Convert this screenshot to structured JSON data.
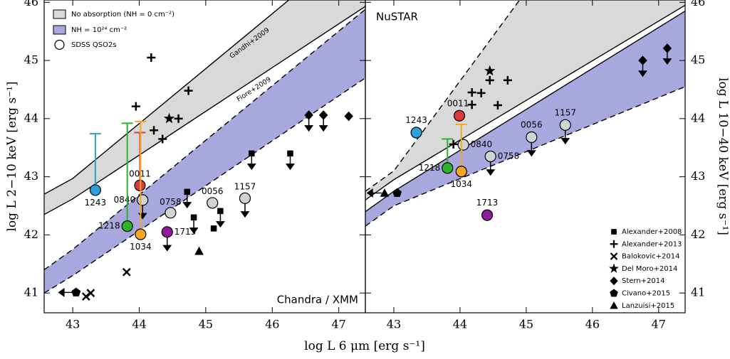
{
  "chart_data": [
    {
      "type": "scatter",
      "xlabel": "log L 6 μm [erg s⁻¹]",
      "ylabel": "log L 2−10 keV [erg s⁻¹]",
      "xlim": [
        42.57,
        47.4
      ],
      "ylim": [
        40.66,
        46.04
      ],
      "xticks": [
        43,
        44,
        45,
        46,
        47
      ],
      "yticks": [
        41,
        42,
        43,
        44,
        45,
        46
      ],
      "panel_label": "Chandra / XMM",
      "annotations": [
        "Gandhi+2009",
        "Fiore+2009"
      ],
      "bands": [
        {
          "name": "No absorption (NH = 0 cm⁻²)",
          "color": "#d9d9d9",
          "upper_dashed": false,
          "lower_dashed": false,
          "upper": {
            "x": [
              42.57,
              43.0,
              46.25
            ],
            "y": [
              42.7,
              42.97,
              46.04
            ]
          },
          "lower": {
            "x": [
              42.57,
              43.0,
              47.4
            ],
            "y": [
              42.35,
              42.62,
              45.93
            ]
          }
        },
        {
          "name": "NH = 10²⁴ cm⁻²",
          "color": "#a9a8de",
          "upper_dashed": true,
          "lower_dashed": true,
          "upper": {
            "x": [
              42.57,
              43.0,
              47.4
            ],
            "y": [
              41.4,
              41.75,
              45.88
            ]
          },
          "lower": {
            "x": [
              42.57,
              43.0,
              47.4
            ],
            "y": [
              41.0,
              41.3,
              44.7
            ]
          }
        }
      ],
      "series": [
        {
          "name": "SDSS QSO2s",
          "marker": "circle",
          "labels": [
            "1243",
            "0011",
            "0840",
            "1218",
            "1034",
            "1713",
            "0758",
            "0056",
            "1157"
          ],
          "colors": [
            "#2e9fd8",
            "#d93a3a",
            "#d3d3d3",
            "#2bb52b",
            "#f5a623",
            "#8e1b9e",
            "#d3d3d3",
            "#d3d3d3",
            "#d3d3d3"
          ],
          "x": [
            43.34,
            44.01,
            44.05,
            43.82,
            44.02,
            44.42,
            44.47,
            45.1,
            45.59
          ],
          "y": [
            42.77,
            42.85,
            42.6,
            42.15,
            42.01,
            42.05,
            42.38,
            42.55,
            42.63
          ],
          "upper_limit": [
            false,
            false,
            true,
            false,
            false,
            true,
            false,
            false,
            true
          ],
          "err_top": [
            43.74,
            43.76,
            null,
            43.92,
            43.95,
            null,
            null,
            null,
            null
          ]
        },
        {
          "name": "Alexander+2008",
          "marker": "square",
          "color": "#000000",
          "x": [
            44.72,
            44.82,
            45.12,
            45.22,
            45.69,
            46.27
          ],
          "y": [
            42.74,
            42.3,
            42.11,
            42.41,
            43.4,
            43.4
          ],
          "upper_limit": [
            true,
            true,
            false,
            true,
            true,
            true
          ]
        },
        {
          "name": "Alexander+2013",
          "marker": "plus",
          "color": "#000000",
          "x": [
            43.95,
            44.18,
            44.22,
            44.35,
            44.59,
            44.74
          ],
          "y": [
            44.21,
            45.05,
            43.8,
            43.65,
            44.0,
            44.48
          ]
        },
        {
          "name": "Balokovic+2014",
          "marker": "x",
          "color": "#000000",
          "x": [
            43.81,
            43.2,
            43.27
          ],
          "y": [
            41.36,
            40.94,
            41.0
          ]
        },
        {
          "name": "Del Moro+2014",
          "marker": "star",
          "color": "#000000",
          "x": [
            44.45
          ],
          "y": [
            44.0
          ]
        },
        {
          "name": "Stern+2014",
          "marker": "diamond",
          "color": "#000000",
          "x": [
            46.55,
            46.77,
            47.15
          ],
          "y": [
            44.06,
            44.06,
            44.04
          ],
          "upper_limit": [
            true,
            true,
            false
          ]
        },
        {
          "name": "Civano+2015",
          "marker": "pentagon",
          "color": "#000000",
          "x": [
            43.05
          ],
          "y": [
            41.01
          ],
          "x_upper_limit": [
            true
          ]
        },
        {
          "name": "Lanzuisi+2015",
          "marker": "triangle",
          "color": "#000000",
          "x": [
            44.9
          ],
          "y": [
            41.72
          ]
        }
      ]
    },
    {
      "type": "scatter",
      "ylabel": "log L 10−40 keV [erg s⁻¹]",
      "xlim": [
        42.57,
        47.4
      ],
      "ylim": [
        40.66,
        46.04
      ],
      "xticks": [
        43,
        44,
        45,
        46,
        47
      ],
      "yticks": [
        41,
        42,
        43,
        44,
        45,
        46
      ],
      "panel_label": "NuSTAR",
      "bands": [
        {
          "color": "#a9a8de",
          "upper_dashed": false,
          "lower_dashed": true,
          "upper": {
            "x": [
              42.57,
              43.0,
              47.4
            ],
            "y": [
              42.4,
              42.75,
              45.85
            ]
          },
          "lower": {
            "x": [
              42.57,
              43.0,
              47.4
            ],
            "y": [
              42.15,
              42.5,
              44.55
            ]
          }
        },
        {
          "color": "#d9d9d9",
          "upper_dashed": true,
          "lower_dashed": false,
          "upper": {
            "x": [
              42.57,
              43.0,
              44.9
            ],
            "y": [
              42.75,
              43.1,
              46.04
            ]
          },
          "lower": {
            "x": [
              42.57,
              43.0,
              47.4
            ],
            "y": [
              42.6,
              42.95,
              45.95
            ]
          }
        }
      ],
      "series": [
        {
          "name": "SDSS QSO2s",
          "marker": "circle",
          "labels": [
            "1243",
            "0011",
            "0840",
            "1218",
            "1034",
            "1713",
            "0758",
            "0056",
            "1157"
          ],
          "colors": [
            "#2e9fd8",
            "#d93a3a",
            "#d3d3d3",
            "#2bb52b",
            "#f5a623",
            "#8e1b9e",
            "#d3d3d3",
            "#d3d3d3",
            "#d3d3d3"
          ],
          "x": [
            43.34,
            43.99,
            44.05,
            43.81,
            44.02,
            44.41,
            44.46,
            45.08,
            45.59
          ],
          "y": [
            43.76,
            44.05,
            43.55,
            43.15,
            43.09,
            42.34,
            43.35,
            43.68,
            43.89
          ],
          "upper_limit": [
            false,
            false,
            false,
            false,
            false,
            false,
            true,
            true,
            true
          ],
          "err_top": [
            null,
            null,
            null,
            43.65,
            43.9,
            null,
            null,
            null,
            null
          ]
        },
        {
          "name": "Alexander+2013",
          "marker": "plus",
          "color": "#000000",
          "x": [
            43.9,
            44.18,
            44.32,
            44.18,
            44.45,
            44.57,
            44.72
          ],
          "y": [
            43.56,
            44.45,
            44.44,
            44.24,
            44.66,
            44.23,
            44.66
          ]
        },
        {
          "name": "Del Moro+2014",
          "marker": "star",
          "color": "#000000",
          "x": [
            44.45
          ],
          "y": [
            44.82
          ]
        },
        {
          "name": "Stern+2014",
          "marker": "diamond",
          "color": "#000000",
          "x": [
            46.76,
            47.13
          ],
          "y": [
            45.0,
            45.21
          ],
          "upper_limit": [
            true,
            true
          ]
        },
        {
          "name": "Civano+2015",
          "marker": "pentagon",
          "color": "#000000",
          "x": [
            43.05
          ],
          "y": [
            42.72
          ]
        },
        {
          "name": "Lanzuisi+2015",
          "marker": "triangle",
          "color": "#000000",
          "x": [
            42.86
          ],
          "y": [
            42.72
          ],
          "x_upper_limit": [
            true
          ]
        }
      ]
    }
  ]
}
